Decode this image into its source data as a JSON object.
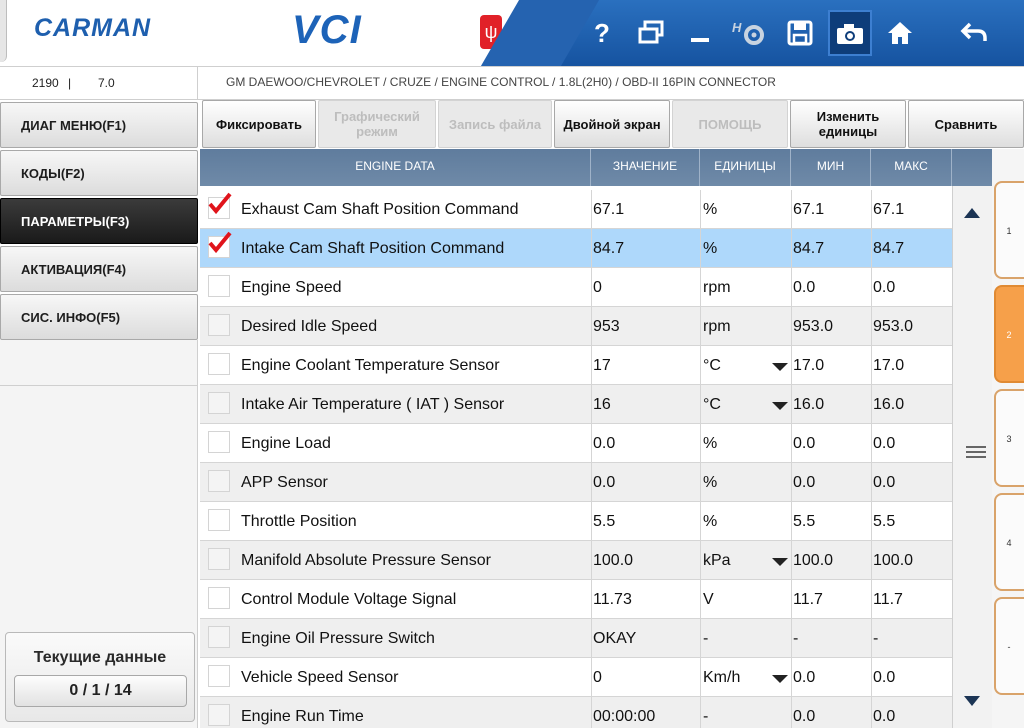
{
  "app": {
    "logo": "CARMAN",
    "title": "VCI",
    "usb_icon": "usb-icon"
  },
  "toolbar": {
    "icons": [
      "help-icon",
      "window-icon",
      "minimize-icon",
      "settings-icon",
      "save-icon",
      "camera-icon",
      "home-icon",
      "back-icon"
    ],
    "help_label": "?"
  },
  "info": {
    "code": "2190",
    "separator": "|",
    "version": "7.0",
    "breadcrumb": "GM DAEWOO/CHEVROLET / CRUZE / ENGINE CONTROL / 1.8L(2H0) / OBD-II 16PIN CONNECTOR"
  },
  "nav": {
    "items": [
      {
        "label": "ДИАГ МЕНЮ(F1)",
        "active": false
      },
      {
        "label": "КОДЫ(F2)",
        "active": false
      },
      {
        "label": "ПАРАМЕТРЫ(F3)",
        "active": true
      },
      {
        "label": "АКТИВАЦИЯ(F4)",
        "active": false
      },
      {
        "label": "СИС. ИНФО(F5)",
        "active": false
      }
    ],
    "current_title": "Текущие данные",
    "current_count": "0 / 1 / 14"
  },
  "buttons": {
    "freeze": "Фиксировать",
    "graph": "Графический режим",
    "record": "Запись файла",
    "dual": "Двойной экран",
    "help": "ПОМОЩЬ",
    "units": "Изменить единицы",
    "compare": "Сравнить"
  },
  "table": {
    "headers": {
      "name": "ENGINE DATA",
      "value": "ЗНАЧЕНИЕ",
      "units": "ЕДИНИЦЫ",
      "min": "МИН",
      "max": "МАКС"
    },
    "rows": [
      {
        "name": "Exhaust Cam Shaft Position Command",
        "value": "67.1",
        "unit": "%",
        "min": "67.1",
        "max": "67.1",
        "checked": true,
        "dropdown": false,
        "selected": false
      },
      {
        "name": "Intake Cam Shaft Position Command",
        "value": "84.7",
        "unit": "%",
        "min": "84.7",
        "max": "84.7",
        "checked": true,
        "dropdown": false,
        "selected": true
      },
      {
        "name": "Engine Speed",
        "value": "0",
        "unit": "rpm",
        "min": "0.0",
        "max": "0.0",
        "checked": false,
        "dropdown": false,
        "selected": false
      },
      {
        "name": "Desired Idle Speed",
        "value": "953",
        "unit": "rpm",
        "min": "953.0",
        "max": "953.0",
        "checked": false,
        "dropdown": false,
        "selected": false
      },
      {
        "name": "Engine Coolant Temperature Sensor",
        "value": "17",
        "unit": "°C",
        "min": "17.0",
        "max": "17.0",
        "checked": false,
        "dropdown": true,
        "selected": false
      },
      {
        "name": "Intake Air Temperature ( IAT ) Sensor",
        "value": "16",
        "unit": "°C",
        "min": "16.0",
        "max": "16.0",
        "checked": false,
        "dropdown": true,
        "selected": false
      },
      {
        "name": "Engine Load",
        "value": "0.0",
        "unit": "%",
        "min": "0.0",
        "max": "0.0",
        "checked": false,
        "dropdown": false,
        "selected": false
      },
      {
        "name": "APP Sensor",
        "value": "0.0",
        "unit": "%",
        "min": "0.0",
        "max": "0.0",
        "checked": false,
        "dropdown": false,
        "selected": false
      },
      {
        "name": "Throttle Position",
        "value": "5.5",
        "unit": "%",
        "min": "5.5",
        "max": "5.5",
        "checked": false,
        "dropdown": false,
        "selected": false
      },
      {
        "name": "Manifold Absolute Pressure Sensor",
        "value": "100.0",
        "unit": "kPa",
        "min": "100.0",
        "max": "100.0",
        "checked": false,
        "dropdown": true,
        "selected": false
      },
      {
        "name": "Control Module Voltage Signal",
        "value": "11.73",
        "unit": "V",
        "min": "11.7",
        "max": "11.7",
        "checked": false,
        "dropdown": false,
        "selected": false
      },
      {
        "name": "Engine Oil Pressure Switch",
        "value": "OKAY",
        "unit": "-",
        "min": "-",
        "max": "-",
        "checked": false,
        "dropdown": false,
        "selected": false
      },
      {
        "name": "Vehicle Speed Sensor",
        "value": "0",
        "unit": "Km/h",
        "min": "0.0",
        "max": "0.0",
        "checked": false,
        "dropdown": true,
        "selected": false
      },
      {
        "name": "Engine Run Time",
        "value": "00:00:00",
        "unit": "-",
        "min": "0.0",
        "max": "0.0",
        "checked": false,
        "dropdown": false,
        "selected": false
      }
    ]
  },
  "page_tabs": [
    {
      "label": "1",
      "active": false
    },
    {
      "label": "2",
      "active": true
    },
    {
      "label": "3",
      "active": false
    },
    {
      "label": "4",
      "active": false
    },
    {
      "label": "-",
      "active": false
    }
  ],
  "colors": {
    "brand_blue": "#1e5fae",
    "toolbar_blue": "#1653a0",
    "selected_row": "#aed8fb",
    "check_red": "#e0141b",
    "page_tab_active": "#f6a04a"
  }
}
